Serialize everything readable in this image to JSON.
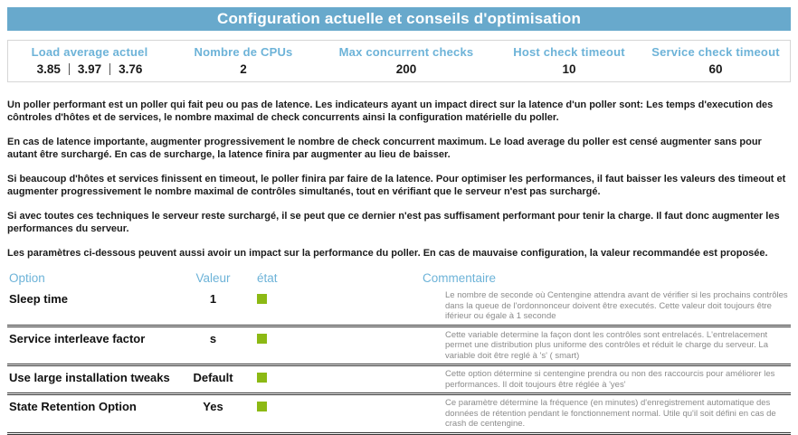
{
  "colors": {
    "bar_blue": "#68a9cc",
    "label_blue": "#6db3d8",
    "status_green": "#8cb914"
  },
  "title_bar": {
    "title": "Configuration actuelle et conseils d'optimisation"
  },
  "stats": {
    "columns": [
      {
        "label": "Load average actuel",
        "values": [
          "3.85",
          "3.97",
          "3.76"
        ]
      },
      {
        "label": "Nombre de CPUs",
        "value": "2"
      },
      {
        "label": "Max concurrent checks",
        "value": "200"
      },
      {
        "label": "Host check timeout",
        "value": "10"
      },
      {
        "label": "Service check timeout",
        "value": "60"
      }
    ]
  },
  "paragraphs": [
    "Un poller performant est un poller qui fait peu ou pas de latence. Les indicateurs ayant un impact direct sur la latence d'un poller sont: Les temps d'execution des côntroles d'hôtes et de services, le nombre maximal de check concurrents ainsi la configuration matérielle du poller.",
    "En cas de latence importante, augmenter progressivement le nombre de check concurrent maximum. Le load average du poller est censé augmenter sans pour autant être surchargé. En cas de surcharge, la latence finira par augmenter au lieu de baisser.",
    "Si beaucoup d'hôtes et services finissent en timeout, le poller finira par faire de la latence. Pour optimiser les performances, il faut baisser les valeurs des timeout et augmenter progressivement le nombre maximal de contrôles simultanés, tout en vérifiant que le serveur n'est pas surchargé.",
    "Si avec toutes ces techniques le serveur reste surchargé, il se peut que ce dernier n'est pas suffisament performant pour tenir la charge. Il faut donc augmenter les performances du serveur.",
    "Les paramètres ci-dessous peuvent aussi avoir un impact sur la performance du poller. En cas de mauvaise configuration, la valeur recommandée est proposée."
  ],
  "options_table": {
    "headers": {
      "option": "Option",
      "valeur": "Valeur",
      "etat": "état",
      "commentaire": "Commentaire"
    },
    "rows": [
      {
        "option": "Sleep time",
        "valeur": "1",
        "etat": "ok-green-square",
        "commentaire": "Le nombre de seconde où Centengine attendra avant de vérifier si les prochains contrôles dans la queue de l'ordonnonceur doivent être executés. Cette valeur doit toujours être iférieur ou égale à 1 seconde"
      },
      {
        "option": "Service interleave factor",
        "valeur": "s",
        "etat": "ok-green-square",
        "commentaire": "Cette variable determine la façon dont les contrôles sont entrelacés. L'entrelacement permet une distribution plus uniforme des contrôles et réduit le charge du serveur. La variable doit être reglé à 's' ( smart)"
      },
      {
        "option": "Use large installation tweaks",
        "valeur": "Default",
        "etat": "ok-green-square",
        "commentaire": "Cette option détermine si centengine prendra ou non des raccourcis pour améliorer les performances. Il doit toujours être réglée à 'yes'"
      },
      {
        "option": "State Retention Option",
        "valeur": "Yes",
        "etat": "ok-green-square",
        "commentaire": "Ce paramètre détermine la fréquence (en minutes) d'enregistrement automatique des données de rétention pendant le fonctionnement normal. Utile qu'il soit défini en cas de crash de centengine."
      }
    ]
  }
}
